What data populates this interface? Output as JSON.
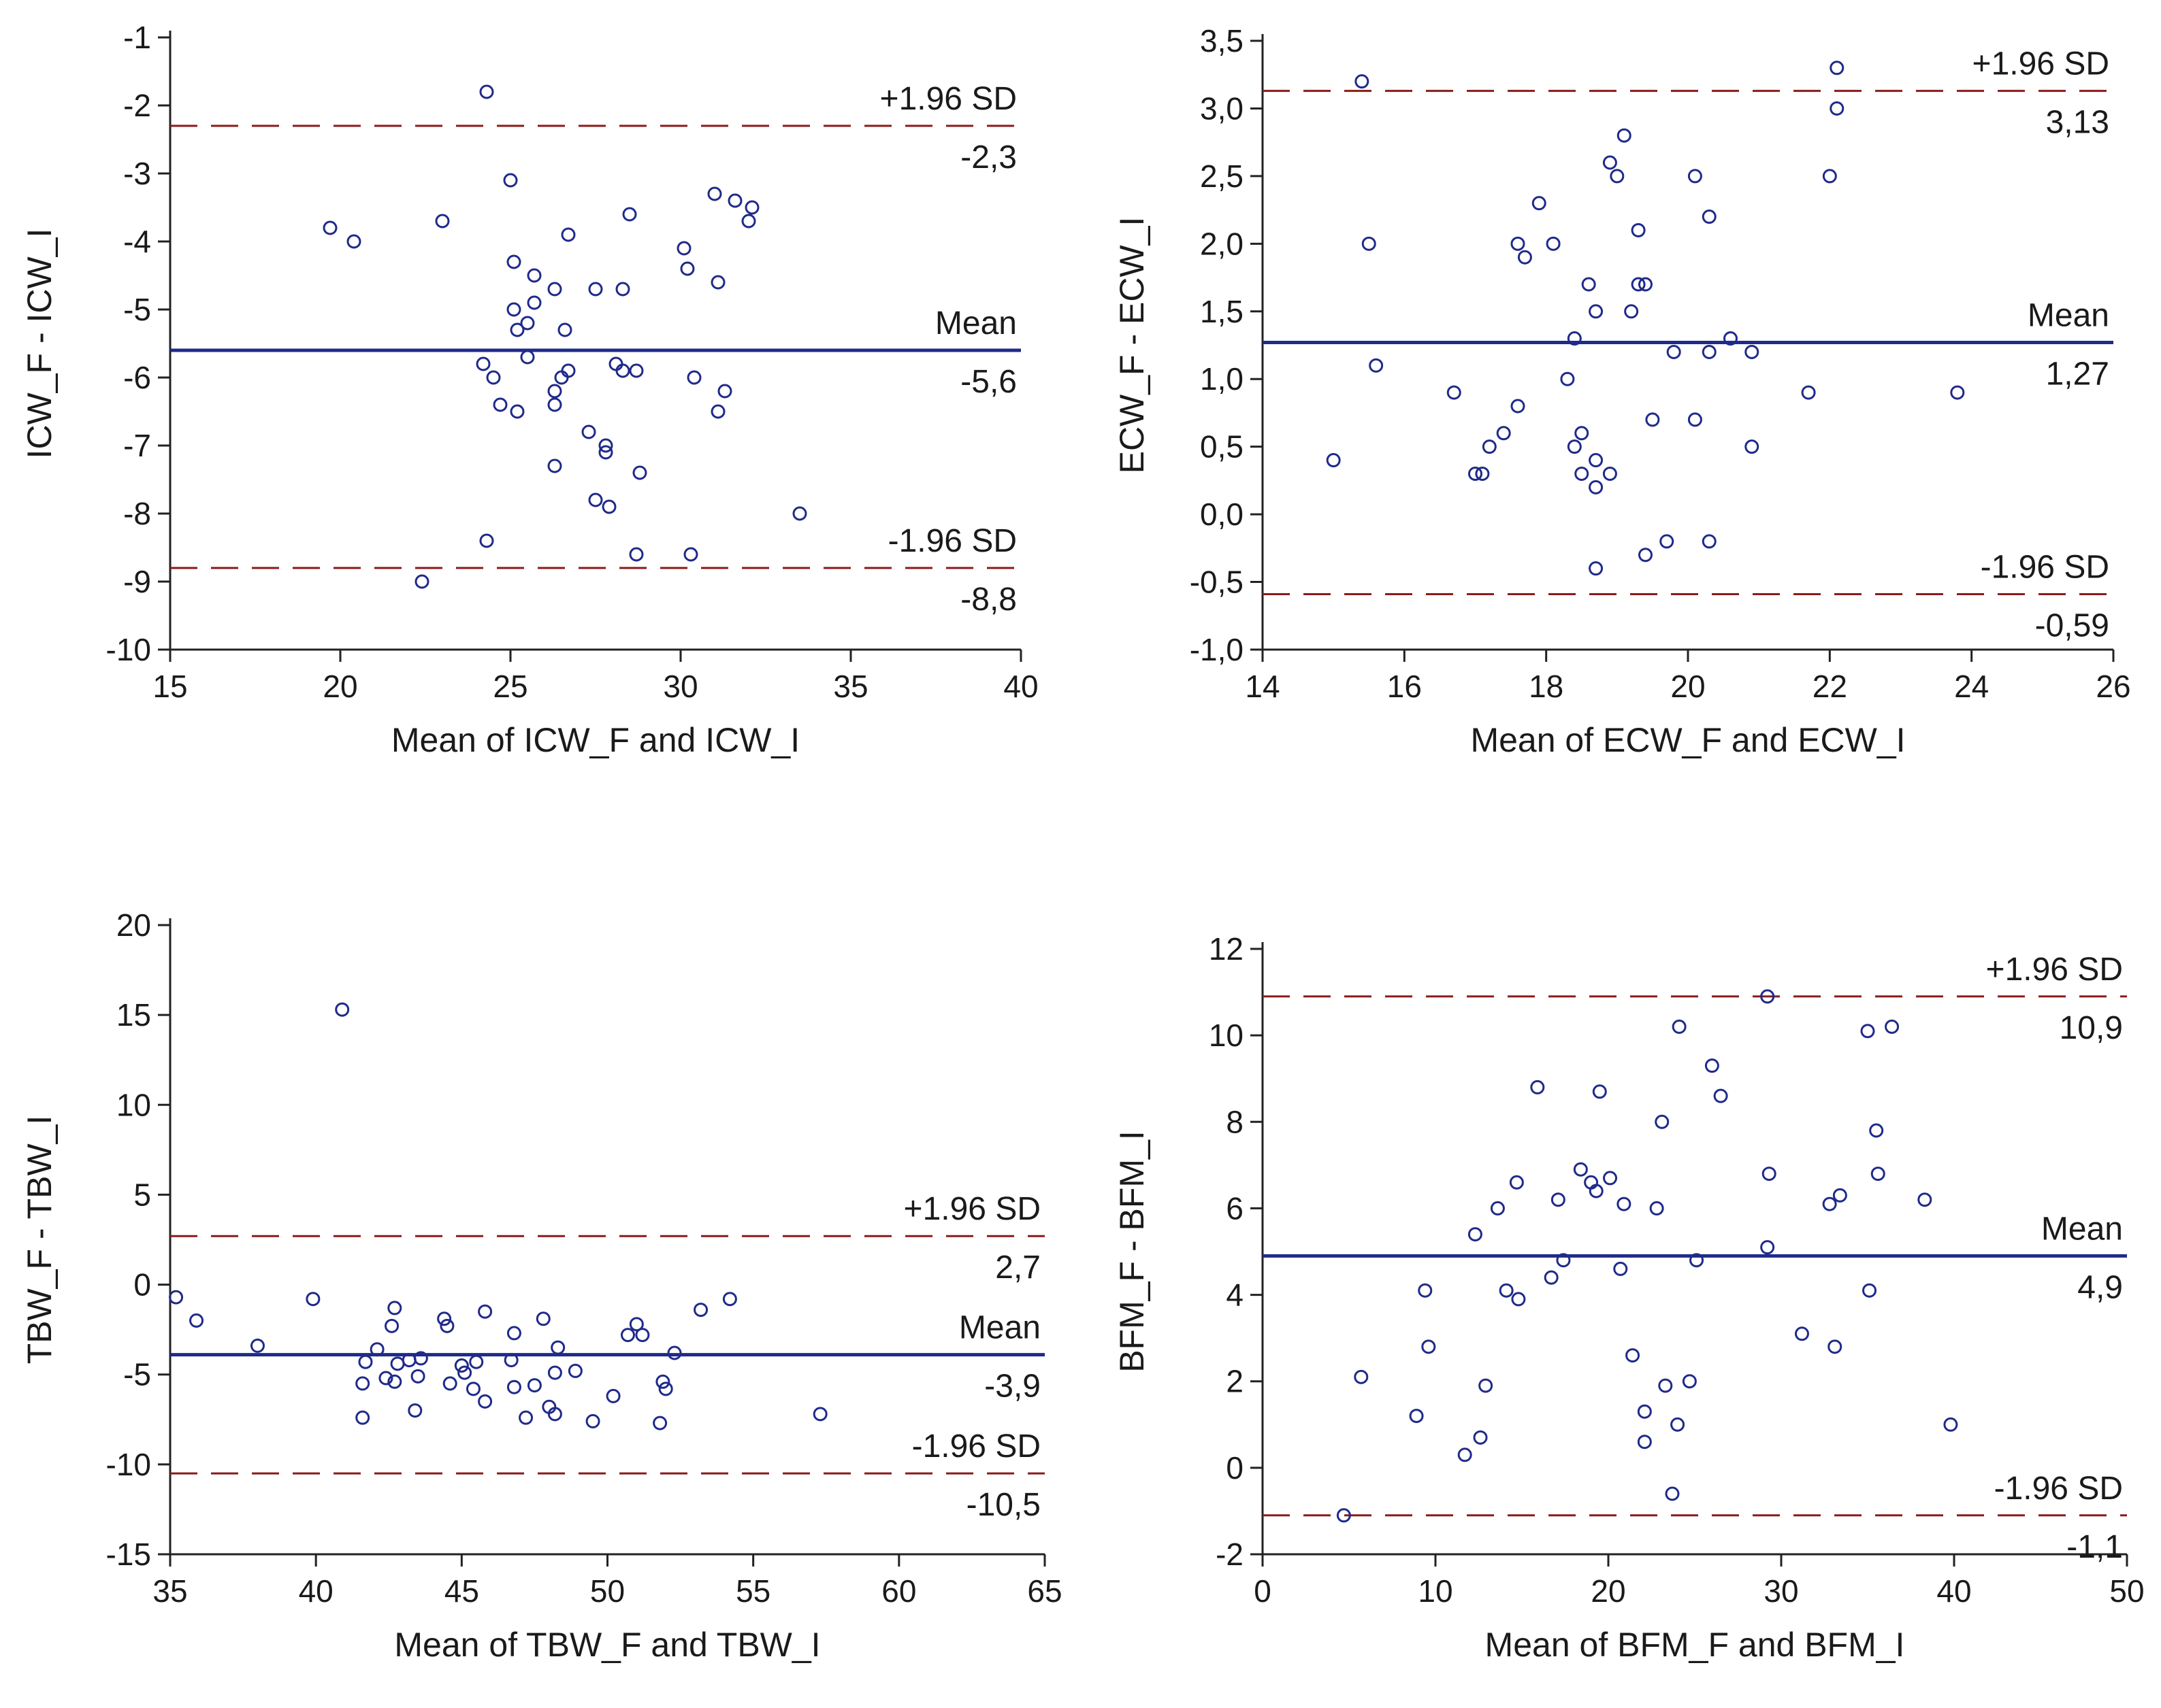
{
  "chart_data": [
    {
      "type": "scatter",
      "subtype": "bland-altman",
      "xlabel": "Mean of ICW_F and ICW_I",
      "ylabel": "ICW_F - ICW_I",
      "xlim": [
        15,
        40
      ],
      "ylim": [
        -10,
        -1
      ],
      "xticks": [
        15,
        20,
        25,
        30,
        35,
        40
      ],
      "yticks": [
        -1,
        -2,
        -3,
        -4,
        -5,
        -6,
        -7,
        -8,
        -9,
        -10
      ],
      "ytick_labels": [
        "-1",
        "-2",
        "-3",
        "-4",
        "-5",
        "-6",
        "-7",
        "-8",
        "-9",
        "-10"
      ],
      "mean": {
        "value": -5.6,
        "label": "Mean",
        "value_label": "-5,6"
      },
      "upper": {
        "value": -2.3,
        "label": "+1.96 SD",
        "value_label": "-2,3"
      },
      "lower": {
        "value": -8.8,
        "label": "-1.96 SD",
        "value_label": "-8,8"
      },
      "points": [
        [
          24.3,
          -1.8
        ],
        [
          19.7,
          -3.8
        ],
        [
          20.4,
          -4.0
        ],
        [
          23.0,
          -3.7
        ],
        [
          25.0,
          -3.1
        ],
        [
          26.7,
          -3.9
        ],
        [
          28.5,
          -3.6
        ],
        [
          31.0,
          -3.3
        ],
        [
          31.6,
          -3.4
        ],
        [
          32.1,
          -3.5
        ],
        [
          32.0,
          -3.7
        ],
        [
          30.1,
          -4.1
        ],
        [
          30.2,
          -4.4
        ],
        [
          31.1,
          -4.6
        ],
        [
          25.1,
          -4.3
        ],
        [
          25.7,
          -4.5
        ],
        [
          25.1,
          -5.0
        ],
        [
          25.7,
          -4.9
        ],
        [
          26.3,
          -4.7
        ],
        [
          27.5,
          -4.7
        ],
        [
          28.3,
          -4.7
        ],
        [
          25.2,
          -5.3
        ],
        [
          25.5,
          -5.2
        ],
        [
          26.6,
          -5.3
        ],
        [
          25.5,
          -5.7
        ],
        [
          24.2,
          -5.8
        ],
        [
          24.5,
          -6.0
        ],
        [
          28.1,
          -5.8
        ],
        [
          28.3,
          -5.9
        ],
        [
          28.7,
          -5.9
        ],
        [
          26.7,
          -5.9
        ],
        [
          26.5,
          -6.0
        ],
        [
          30.4,
          -6.0
        ],
        [
          31.3,
          -6.2
        ],
        [
          26.3,
          -6.2
        ],
        [
          26.3,
          -6.4
        ],
        [
          24.7,
          -6.4
        ],
        [
          25.2,
          -6.5
        ],
        [
          31.1,
          -6.5
        ],
        [
          27.3,
          -6.8
        ],
        [
          27.8,
          -7.0
        ],
        [
          27.8,
          -7.1
        ],
        [
          26.3,
          -7.3
        ],
        [
          28.8,
          -7.4
        ],
        [
          27.5,
          -7.8
        ],
        [
          27.9,
          -7.9
        ],
        [
          33.5,
          -8.0
        ],
        [
          24.3,
          -8.4
        ],
        [
          28.7,
          -8.6
        ],
        [
          30.3,
          -8.6
        ],
        [
          22.4,
          -9.0
        ]
      ]
    },
    {
      "type": "scatter",
      "subtype": "bland-altman",
      "xlabel": "Mean of ECW_F and ECW_I",
      "ylabel": "ECW_F - ECW_I",
      "xlim": [
        14,
        26
      ],
      "ylim": [
        -1.0,
        3.5
      ],
      "xticks": [
        14,
        16,
        18,
        20,
        22,
        24,
        26
      ],
      "yticks": [
        3.5,
        3.0,
        2.5,
        2.0,
        1.5,
        1.0,
        0.5,
        0.0,
        -0.5,
        -1.0
      ],
      "ytick_labels": [
        "3,5",
        "3,0",
        "2,5",
        "2,0",
        "1,5",
        "1,0",
        "0,5",
        "0,0",
        "-0,5",
        "-1,0"
      ],
      "mean": {
        "value": 1.27,
        "label": "Mean",
        "value_label": "1,27"
      },
      "upper": {
        "value": 3.13,
        "label": "+1.96 SD",
        "value_label": "3,13"
      },
      "lower": {
        "value": -0.59,
        "label": "-1.96 SD",
        "value_label": "-0,59"
      },
      "points": [
        [
          15.4,
          3.2
        ],
        [
          22.1,
          3.3
        ],
        [
          22.1,
          3.0
        ],
        [
          19.1,
          2.8
        ],
        [
          18.9,
          2.6
        ],
        [
          19.0,
          2.5
        ],
        [
          20.1,
          2.5
        ],
        [
          22.0,
          2.5
        ],
        [
          17.9,
          2.3
        ],
        [
          20.3,
          2.2
        ],
        [
          19.3,
          2.1
        ],
        [
          15.5,
          2.0
        ],
        [
          17.6,
          2.0
        ],
        [
          18.1,
          2.0
        ],
        [
          17.7,
          1.9
        ],
        [
          18.6,
          1.7
        ],
        [
          19.3,
          1.7
        ],
        [
          19.4,
          1.7
        ],
        [
          18.7,
          1.5
        ],
        [
          19.2,
          1.5
        ],
        [
          18.4,
          1.3
        ],
        [
          20.6,
          1.3
        ],
        [
          19.8,
          1.2
        ],
        [
          20.3,
          1.2
        ],
        [
          20.9,
          1.2
        ],
        [
          15.6,
          1.1
        ],
        [
          18.3,
          1.0
        ],
        [
          16.7,
          0.9
        ],
        [
          21.7,
          0.9
        ],
        [
          23.8,
          0.9
        ],
        [
          17.6,
          0.8
        ],
        [
          19.5,
          0.7
        ],
        [
          20.1,
          0.7
        ],
        [
          17.4,
          0.6
        ],
        [
          18.5,
          0.6
        ],
        [
          17.2,
          0.5
        ],
        [
          18.4,
          0.5
        ],
        [
          20.9,
          0.5
        ],
        [
          15.0,
          0.4
        ],
        [
          18.7,
          0.4
        ],
        [
          17.0,
          0.3
        ],
        [
          17.1,
          0.3
        ],
        [
          18.5,
          0.3
        ],
        [
          18.9,
          0.3
        ],
        [
          18.7,
          0.2
        ],
        [
          19.4,
          -0.3
        ],
        [
          19.7,
          -0.2
        ],
        [
          20.3,
          -0.2
        ],
        [
          18.7,
          -0.4
        ]
      ]
    },
    {
      "type": "scatter",
      "subtype": "bland-altman",
      "xlabel": "Mean of TBW_F and TBW_I",
      "ylabel": "TBW_F - TBW_I",
      "xlim": [
        35,
        65
      ],
      "ylim": [
        -15,
        20
      ],
      "xticks": [
        35,
        40,
        45,
        50,
        55,
        60,
        65
      ],
      "yticks": [
        20,
        15,
        10,
        5,
        0,
        -5,
        -10,
        -15
      ],
      "ytick_labels": [
        "20",
        "15",
        "10",
        "5",
        "0",
        "-5",
        "-10",
        "-15"
      ],
      "mean": {
        "value": -3.9,
        "label": "Mean",
        "value_label": "-3,9"
      },
      "upper": {
        "value": 2.7,
        "label": "+1.96 SD",
        "value_label": "2,7"
      },
      "lower": {
        "value": -10.5,
        "label": "-1.96 SD",
        "value_label": "-10,5"
      },
      "points": [
        [
          40.9,
          15.3
        ],
        [
          35.2,
          -0.7
        ],
        [
          39.9,
          -0.8
        ],
        [
          54.2,
          -0.8
        ],
        [
          35.9,
          -2.0
        ],
        [
          38.0,
          -3.4
        ],
        [
          42.7,
          -1.3
        ],
        [
          45.8,
          -1.5
        ],
        [
          44.4,
          -1.9
        ],
        [
          44.5,
          -2.3
        ],
        [
          47.8,
          -1.9
        ],
        [
          46.8,
          -2.7
        ],
        [
          51.0,
          -2.2
        ],
        [
          50.7,
          -2.8
        ],
        [
          51.2,
          -2.8
        ],
        [
          53.2,
          -1.4
        ],
        [
          42.6,
          -2.3
        ],
        [
          42.1,
          -3.6
        ],
        [
          48.3,
          -3.5
        ],
        [
          52.3,
          -3.8
        ],
        [
          41.7,
          -4.3
        ],
        [
          42.8,
          -4.4
        ],
        [
          43.2,
          -4.2
        ],
        [
          43.6,
          -4.1
        ],
        [
          45.0,
          -4.5
        ],
        [
          45.5,
          -4.3
        ],
        [
          46.7,
          -4.2
        ],
        [
          48.2,
          -4.9
        ],
        [
          48.9,
          -4.8
        ],
        [
          41.6,
          -5.5
        ],
        [
          42.4,
          -5.2
        ],
        [
          42.7,
          -5.4
        ],
        [
          43.5,
          -5.1
        ],
        [
          45.1,
          -4.9
        ],
        [
          44.6,
          -5.5
        ],
        [
          45.4,
          -5.8
        ],
        [
          46.8,
          -5.7
        ],
        [
          47.5,
          -5.6
        ],
        [
          51.9,
          -5.4
        ],
        [
          52.0,
          -5.8
        ],
        [
          45.8,
          -6.5
        ],
        [
          50.2,
          -6.2
        ],
        [
          48.0,
          -6.8
        ],
        [
          48.2,
          -7.2
        ],
        [
          43.4,
          -7.0
        ],
        [
          41.6,
          -7.4
        ],
        [
          47.2,
          -7.4
        ],
        [
          49.5,
          -7.6
        ],
        [
          51.8,
          -7.7
        ],
        [
          57.3,
          -7.2
        ]
      ]
    },
    {
      "type": "scatter",
      "subtype": "bland-altman",
      "xlabel": "Mean of BFM_F and BFM_I",
      "ylabel": "BFM_F - BFM_I",
      "xlim": [
        0,
        50
      ],
      "ylim": [
        -2,
        12
      ],
      "xticks": [
        0,
        10,
        20,
        30,
        40,
        50
      ],
      "yticks": [
        12,
        10,
        8,
        6,
        4,
        2,
        0,
        -2
      ],
      "ytick_labels": [
        "12",
        "10",
        "8",
        "6",
        "4",
        "2",
        "0",
        "-2"
      ],
      "mean": {
        "value": 4.9,
        "label": "Mean",
        "value_label": "4,9"
      },
      "upper": {
        "value": 10.9,
        "label": "+1.96 SD",
        "value_label": "10,9"
      },
      "lower": {
        "value": -1.1,
        "label": "-1.96 SD",
        "value_label": "-1,1"
      },
      "points": [
        [
          29.2,
          10.9
        ],
        [
          24.1,
          10.2
        ],
        [
          35.0,
          10.1
        ],
        [
          36.4,
          10.2
        ],
        [
          26.0,
          9.3
        ],
        [
          15.9,
          8.8
        ],
        [
          19.5,
          8.7
        ],
        [
          26.5,
          8.6
        ],
        [
          23.1,
          8.0
        ],
        [
          35.5,
          7.8
        ],
        [
          18.4,
          6.9
        ],
        [
          29.3,
          6.8
        ],
        [
          35.6,
          6.8
        ],
        [
          20.1,
          6.7
        ],
        [
          19.0,
          6.6
        ],
        [
          14.7,
          6.6
        ],
        [
          19.3,
          6.4
        ],
        [
          17.1,
          6.2
        ],
        [
          20.9,
          6.1
        ],
        [
          32.8,
          6.1
        ],
        [
          33.4,
          6.3
        ],
        [
          38.3,
          6.2
        ],
        [
          13.6,
          6.0
        ],
        [
          22.8,
          6.0
        ],
        [
          12.3,
          5.4
        ],
        [
          29.2,
          5.1
        ],
        [
          17.4,
          4.8
        ],
        [
          25.1,
          4.8
        ],
        [
          20.7,
          4.6
        ],
        [
          16.7,
          4.4
        ],
        [
          9.4,
          4.1
        ],
        [
          14.1,
          4.1
        ],
        [
          35.1,
          4.1
        ],
        [
          14.8,
          3.9
        ],
        [
          31.2,
          3.1
        ],
        [
          9.6,
          2.8
        ],
        [
          33.1,
          2.8
        ],
        [
          21.4,
          2.6
        ],
        [
          5.7,
          2.1
        ],
        [
          12.9,
          1.9
        ],
        [
          23.3,
          1.9
        ],
        [
          24.7,
          2.0
        ],
        [
          22.1,
          1.3
        ],
        [
          8.9,
          1.2
        ],
        [
          24.0,
          1.0
        ],
        [
          39.8,
          1.0
        ],
        [
          12.6,
          0.7
        ],
        [
          22.1,
          0.6
        ],
        [
          11.7,
          0.3
        ],
        [
          23.7,
          -0.6
        ],
        [
          4.7,
          -1.1
        ]
      ]
    }
  ]
}
